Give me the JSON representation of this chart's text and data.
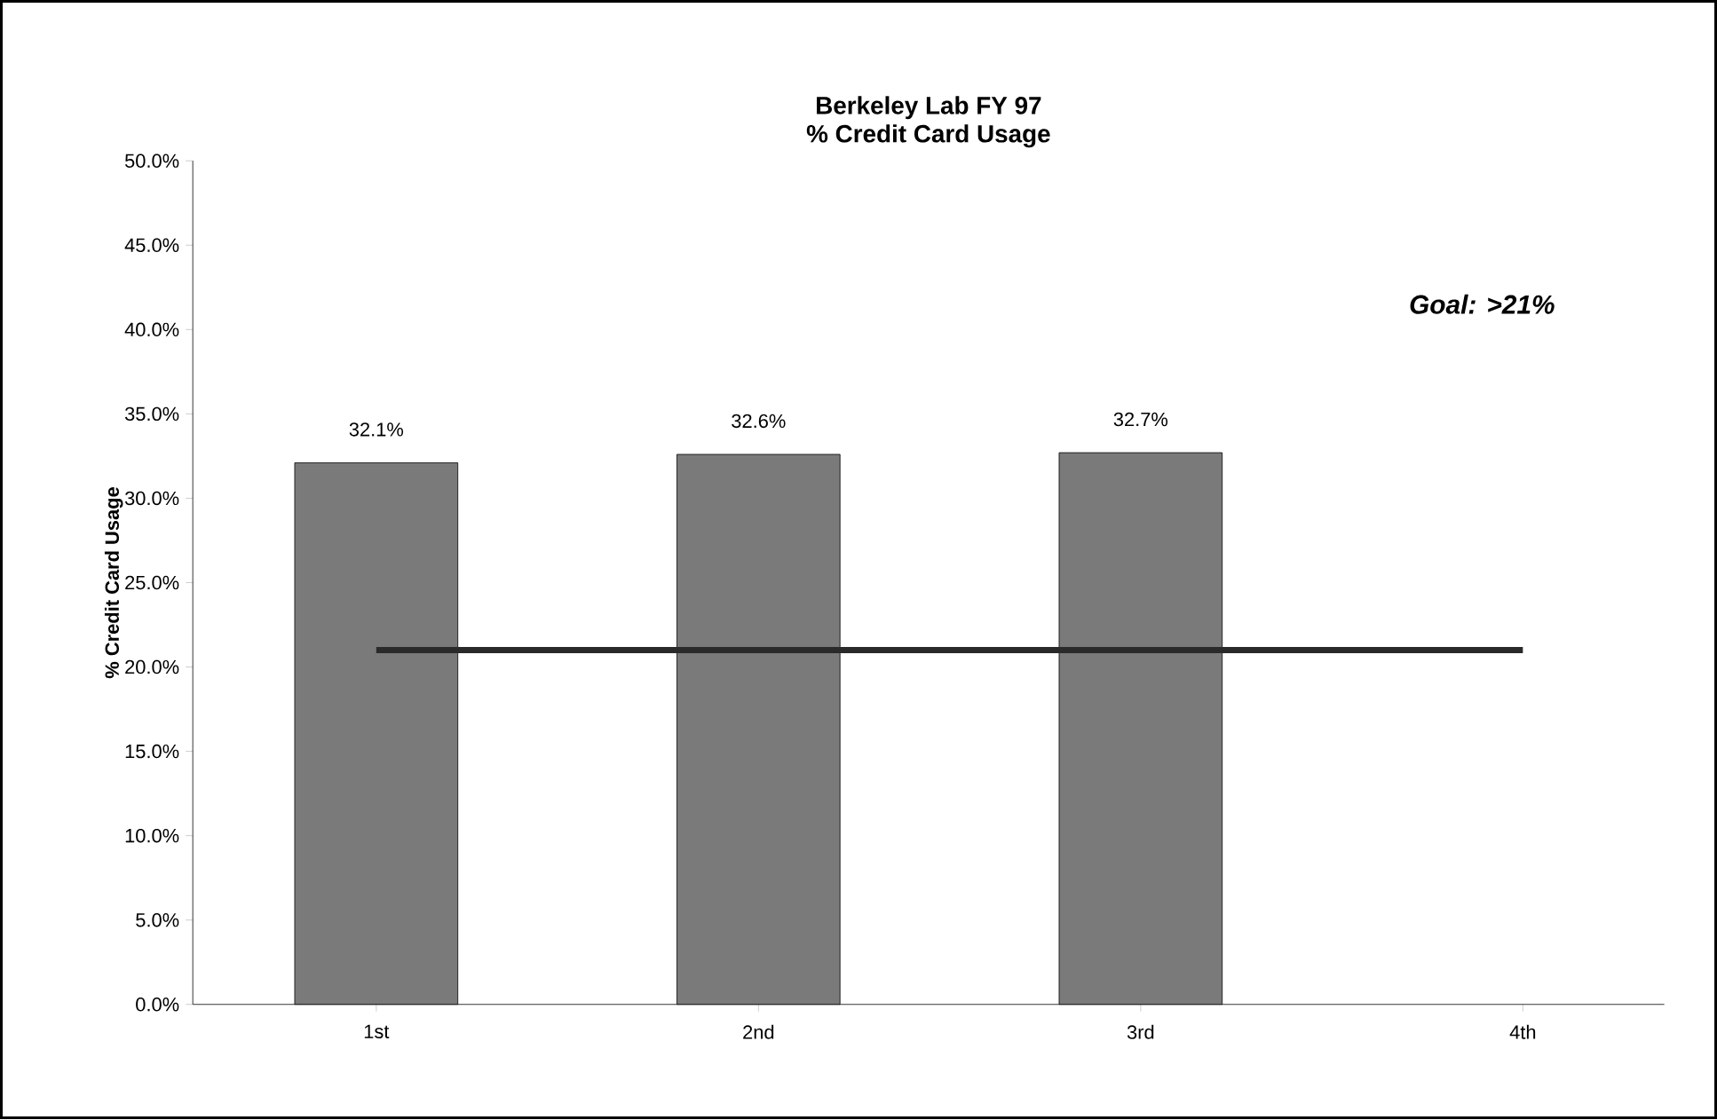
{
  "chart_data": {
    "type": "bar",
    "title": "Berkeley Lab FY 97",
    "subtitle": "% Credit Card Usage",
    "ylabel": "% Credit Card Usage",
    "categories": [
      "1st",
      "2nd",
      "3rd",
      "4th"
    ],
    "series": [
      {
        "color": "#7a7a7a",
        "values": [
          32.1,
          32.6,
          32.7,
          null
        ],
        "value_labels": [
          "32.1%",
          "32.6%",
          "32.7%",
          null
        ]
      },
      {
        "type": "line",
        "color": "#2a2a2a",
        "values": [
          21,
          21,
          21,
          21
        ]
      }
    ],
    "ylim": [
      0,
      50
    ],
    "yticks": [
      {
        "value": 0,
        "label": "0.0%"
      },
      {
        "value": 5,
        "label": "5.0%"
      },
      {
        "value": 10,
        "label": "10.0%"
      },
      {
        "value": 15,
        "label": "15.0%"
      },
      {
        "value": 20,
        "label": "20.0%"
      },
      {
        "value": 25,
        "label": "25.0%"
      },
      {
        "value": 30,
        "label": "30.0%"
      },
      {
        "value": 35,
        "label": "35.0%"
      },
      {
        "value": 40,
        "label": "40.0%"
      },
      {
        "value": 45,
        "label": "45.0%"
      },
      {
        "value": 50,
        "label": "50.0%"
      }
    ],
    "annotations": [
      "**Goal:** >21%"
    ],
    "grid": false,
    "marker": "none"
  }
}
